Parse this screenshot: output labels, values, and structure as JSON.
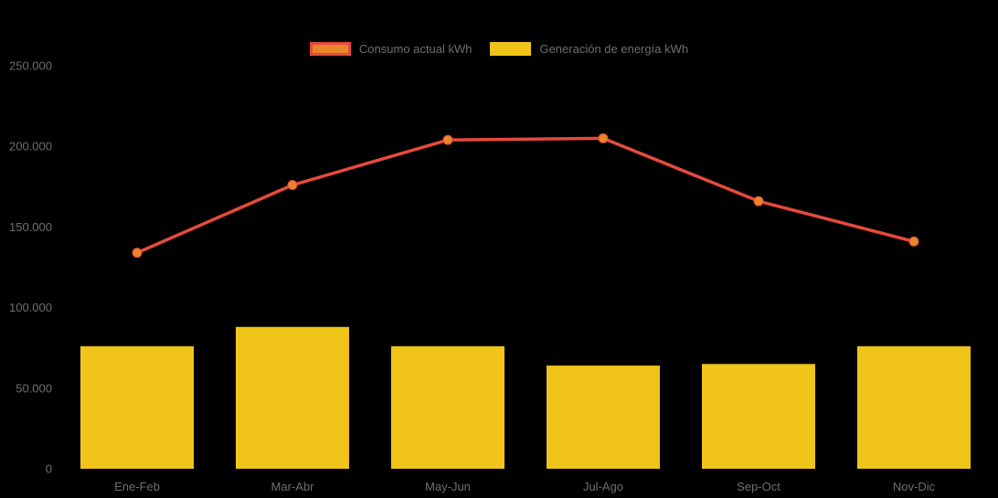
{
  "chart_data": {
    "type": "combo",
    "title": "",
    "xlabel": "",
    "ylabel": "",
    "categories": [
      "Ene-Feb",
      "Mar-Abr",
      "May-Jun",
      "Jul-Ago",
      "Sep-Oct",
      "Nov-Dic"
    ],
    "series": [
      {
        "name": "Consumo actual kWh",
        "type": "line",
        "line_color": "#e64a3c",
        "point_color": "#e8862b",
        "values": [
          134000,
          176000,
          204000,
          205000,
          166000,
          141000
        ]
      },
      {
        "name": "Generación de energía kWh",
        "type": "bar",
        "bar_color": "#f0c419",
        "values": [
          76000,
          88000,
          76000,
          64000,
          65000,
          76000
        ]
      }
    ],
    "ylim": [
      0,
      250000
    ],
    "y_ticks": [
      {
        "value": 0,
        "label": "0"
      },
      {
        "value": 50000,
        "label": "50.000"
      },
      {
        "value": 100000,
        "label": "100.000"
      },
      {
        "value": 150000,
        "label": "150.000"
      },
      {
        "value": 200000,
        "label": "200.000"
      },
      {
        "value": 250000,
        "label": "250.000"
      }
    ],
    "grid": false,
    "legend_position": "top",
    "background_color": "#000000",
    "text_color": "#6e6e6e"
  },
  "legend": {
    "items": [
      {
        "label": "Consumo actual kWh",
        "fill": "#e8862b",
        "border": "#e64a3c"
      },
      {
        "label": "Generación de energía kWh",
        "fill": "#f0c419",
        "border": "#f0c419"
      }
    ]
  }
}
